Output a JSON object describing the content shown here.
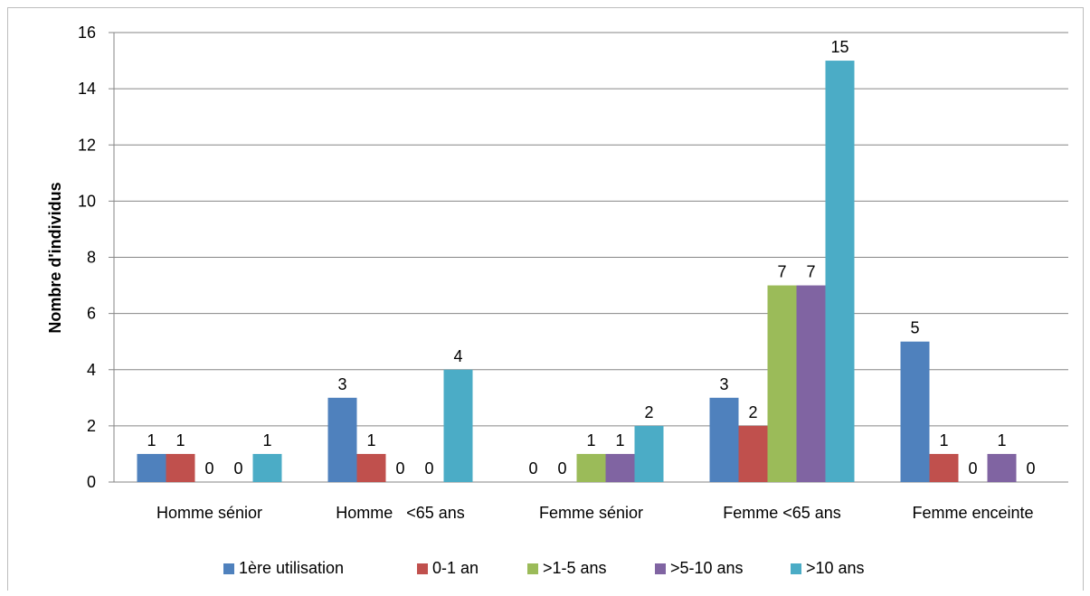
{
  "chart_data": {
    "type": "bar",
    "title": "",
    "xlabel": "",
    "ylabel": "Nombre d'individus",
    "ylim": [
      0,
      16
    ],
    "yticks": [
      0,
      2,
      4,
      6,
      8,
      10,
      12,
      14,
      16
    ],
    "grid": true,
    "legend_position": "bottom",
    "categories": [
      "Homme sénior",
      "Homme   <65 ans",
      "Femme sénior",
      "Femme <65 ans",
      "Femme enceinte"
    ],
    "series": [
      {
        "name": "1ère utilisation",
        "color": "#4F81BD",
        "values": [
          1,
          3,
          0,
          3,
          5
        ]
      },
      {
        "name": "0-1 an",
        "color": "#C0504D",
        "values": [
          1,
          1,
          0,
          2,
          1
        ]
      },
      {
        "name": ">1-5 ans",
        "color": "#9BBB59",
        "values": [
          0,
          0,
          1,
          7,
          0
        ]
      },
      {
        "name": ">5-10 ans",
        "color": "#8064A2",
        "values": [
          0,
          0,
          1,
          7,
          1
        ]
      },
      {
        "name": ">10 ans",
        "color": "#4BACC6",
        "values": [
          1,
          4,
          2,
          15,
          0
        ]
      }
    ]
  }
}
